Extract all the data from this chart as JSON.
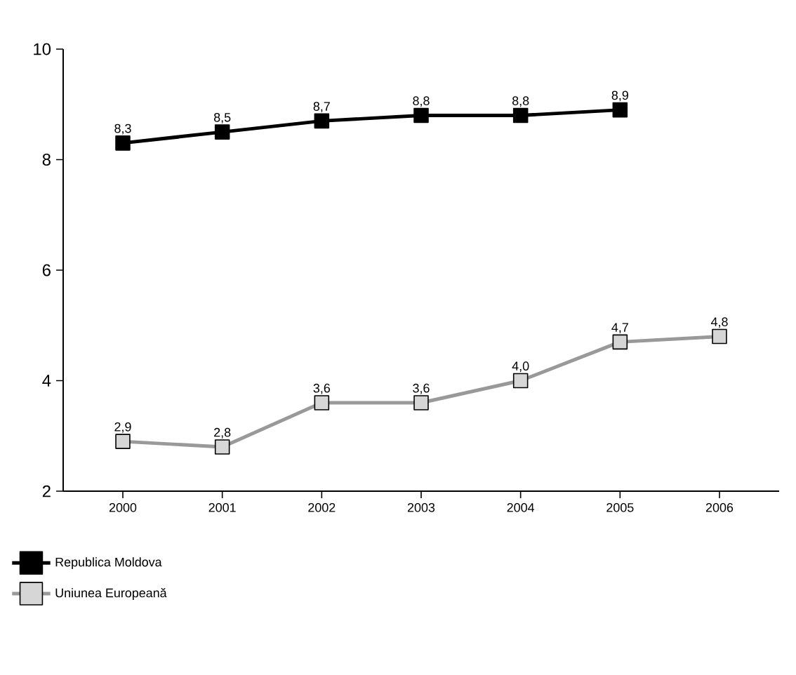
{
  "chart_data": {
    "type": "line",
    "categories": [
      "2000",
      "2001",
      "2002",
      "2003",
      "2004",
      "2005",
      "2006"
    ],
    "series": [
      {
        "name": "Republica Moldova",
        "color": "#000000",
        "values": [
          8.3,
          8.5,
          8.7,
          8.8,
          8.8,
          8.9,
          null
        ],
        "value_labels": [
          "8,3",
          "8,5",
          "8,7",
          "8,8",
          "8,8",
          "8,9",
          null
        ]
      },
      {
        "name": "Uniunea Europeană",
        "color": "#999999",
        "values": [
          2.9,
          2.8,
          3.6,
          3.6,
          4.0,
          4.7,
          4.8
        ],
        "value_labels": [
          "2,9",
          "2,8",
          "3,6",
          "3,6",
          "4,0",
          "4,7",
          "4,8"
        ]
      }
    ],
    "ylim": [
      2,
      10
    ],
    "yticks": [
      2,
      4,
      6,
      8,
      10
    ],
    "grid": false,
    "legend": "bottom left",
    "marker": "square",
    "line_style": "solid"
  }
}
